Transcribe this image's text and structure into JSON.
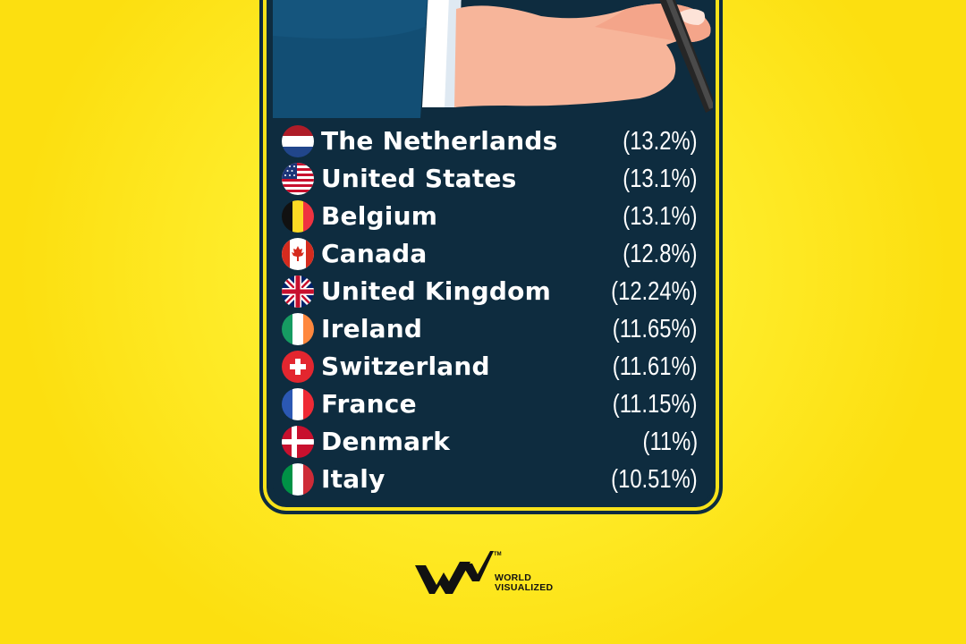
{
  "ranking": [
    {
      "country": "The Netherlands",
      "value": "(13.2%)",
      "flag": "netherlands-flag-icon"
    },
    {
      "country": "United States",
      "value": "(13.1%)",
      "flag": "usa-flag-icon"
    },
    {
      "country": "Belgium",
      "value": "(13.1%)",
      "flag": "belgium-flag-icon"
    },
    {
      "country": "Canada",
      "value": "(12.8%)",
      "flag": "canada-flag-icon"
    },
    {
      "country": "United Kingdom",
      "value": "(12.24%)",
      "flag": "uk-flag-icon"
    },
    {
      "country": "Ireland",
      "value": "(11.65%)",
      "flag": "ireland-flag-icon"
    },
    {
      "country": "Switzerland",
      "value": "(11.61%)",
      "flag": "switzerland-flag-icon"
    },
    {
      "country": "France",
      "value": "(11.15%)",
      "flag": "france-flag-icon"
    },
    {
      "country": "Denmark",
      "value": "(11%)",
      "flag": "denmark-flag-icon"
    },
    {
      "country": "Italy",
      "value": "(10.51%)",
      "flag": "italy-flag-icon"
    }
  ],
  "brand": {
    "line1": "WORLD",
    "line2": "VISUALIZED",
    "trademark": "TM"
  },
  "colors": {
    "background": "#ffe81f",
    "panel": "#0e2c3f",
    "text": "#ffffff"
  }
}
